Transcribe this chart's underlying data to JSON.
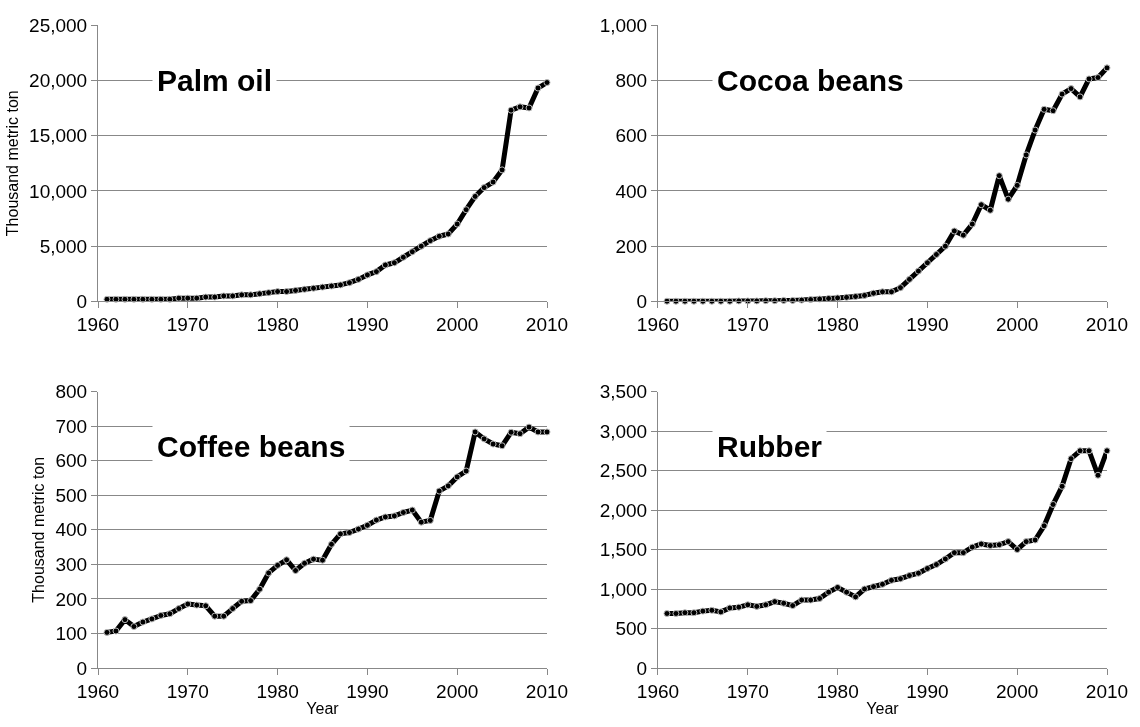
{
  "chart_data": [
    {
      "type": "line",
      "title": "Palm oil",
      "ylabel": "Thousand metric ton",
      "grid": "y",
      "marker": "circle",
      "line_style": "solid",
      "x": [
        1961,
        1962,
        1963,
        1964,
        1965,
        1966,
        1967,
        1968,
        1969,
        1970,
        1971,
        1972,
        1973,
        1974,
        1975,
        1976,
        1977,
        1978,
        1979,
        1980,
        1981,
        1982,
        1983,
        1984,
        1985,
        1986,
        1987,
        1988,
        1989,
        1990,
        1991,
        1992,
        1993,
        1994,
        1995,
        1996,
        1997,
        1998,
        1999,
        2000,
        2001,
        2002,
        2003,
        2004,
        2005,
        2006,
        2007,
        2008,
        2009,
        2010
      ],
      "xlim": [
        1960,
        2010
      ],
      "xticks": [
        1960,
        1970,
        1980,
        1990,
        2000,
        2010
      ],
      "ylim": [
        0,
        25000
      ],
      "yticks": [
        0,
        {
          "value": 5000,
          "label": "5,000"
        },
        {
          "value": 10000,
          "label": "10,000"
        },
        {
          "value": 15000,
          "label": "15,000"
        },
        {
          "value": 20000,
          "label": "20,000"
        },
        {
          "value": 25000,
          "label": "25,000"
        }
      ],
      "series": [
        {
          "color": "#000000",
          "values": [
            200,
            200,
            200,
            200,
            200,
            200,
            200,
            200,
            300,
            300,
            300,
            400,
            400,
            500,
            500,
            600,
            600,
            700,
            800,
            900,
            900,
            1000,
            1100,
            1200,
            1300,
            1400,
            1500,
            1700,
            2000,
            2400,
            2700,
            3300,
            3500,
            4000,
            4500,
            5000,
            5500,
            5900,
            6100,
            7000,
            8300,
            9500,
            10300,
            10800,
            11900,
            17300,
            17600,
            17500,
            19300,
            19800
          ]
        }
      ]
    },
    {
      "type": "line",
      "title": "Cocoa beans",
      "grid": "y",
      "marker": "circle",
      "line_style": "solid",
      "x": [
        1961,
        1962,
        1963,
        1964,
        1965,
        1966,
        1967,
        1968,
        1969,
        1970,
        1971,
        1972,
        1973,
        1974,
        1975,
        1976,
        1977,
        1978,
        1979,
        1980,
        1981,
        1982,
        1983,
        1984,
        1985,
        1986,
        1987,
        1988,
        1989,
        1990,
        1991,
        1992,
        1993,
        1994,
        1995,
        1996,
        1997,
        1998,
        1999,
        2000,
        2001,
        2002,
        2003,
        2004,
        2005,
        2006,
        2007,
        2008,
        2009,
        2010
      ],
      "xlim": [
        1960,
        2010
      ],
      "xticks": [
        1960,
        1970,
        1980,
        1990,
        2000,
        2010
      ],
      "ylim": [
        0,
        1000
      ],
      "yticks": [
        0,
        200,
        400,
        600,
        800,
        {
          "value": 1000,
          "label": "1,000"
        }
      ],
      "series": [
        {
          "color": "#000000",
          "values": [
            1,
            1,
            1,
            1,
            1,
            1,
            1,
            1,
            2,
            2,
            2,
            3,
            3,
            4,
            4,
            5,
            7,
            9,
            11,
            13,
            15,
            18,
            22,
            30,
            35,
            35,
            50,
            80,
            110,
            140,
            170,
            200,
            255,
            240,
            280,
            350,
            330,
            455,
            370,
            420,
            530,
            620,
            695,
            690,
            750,
            770,
            740,
            805,
            810,
            845
          ]
        }
      ]
    },
    {
      "type": "line",
      "title": "Coffee beans",
      "ylabel": "Thousand metric ton",
      "xlabel": "Year",
      "grid": "y",
      "marker": "circle",
      "line_style": "solid",
      "x": [
        1961,
        1962,
        1963,
        1964,
        1965,
        1966,
        1967,
        1968,
        1969,
        1970,
        1971,
        1972,
        1973,
        1974,
        1975,
        1976,
        1977,
        1978,
        1979,
        1980,
        1981,
        1982,
        1983,
        1984,
        1985,
        1986,
        1987,
        1988,
        1989,
        1990,
        1991,
        1992,
        1993,
        1994,
        1995,
        1996,
        1997,
        1998,
        1999,
        2000,
        2001,
        2002,
        2003,
        2004,
        2005,
        2006,
        2007,
        2008,
        2009,
        2010
      ],
      "xlim": [
        1960,
        2010
      ],
      "xticks": [
        1960,
        1970,
        1980,
        1990,
        2000,
        2010
      ],
      "ylim": [
        0,
        800
      ],
      "yticks": [
        0,
        100,
        200,
        300,
        400,
        500,
        600,
        700,
        800
      ],
      "series": [
        {
          "color": "#000000",
          "values": [
            103,
            107,
            140,
            120,
            133,
            142,
            152,
            157,
            172,
            185,
            182,
            180,
            150,
            150,
            172,
            193,
            195,
            228,
            275,
            297,
            313,
            282,
            303,
            315,
            312,
            358,
            388,
            392,
            402,
            413,
            428,
            437,
            440,
            450,
            457,
            422,
            427,
            512,
            527,
            553,
            570,
            683,
            663,
            648,
            643,
            682,
            678,
            697,
            683,
            683
          ]
        }
      ]
    },
    {
      "type": "line",
      "title": "Rubber",
      "xlabel": "Year",
      "grid": "y",
      "marker": "circle",
      "line_style": "solid",
      "x": [
        1961,
        1962,
        1963,
        1964,
        1965,
        1966,
        1967,
        1968,
        1969,
        1970,
        1971,
        1972,
        1973,
        1974,
        1975,
        1976,
        1977,
        1978,
        1979,
        1980,
        1981,
        1982,
        1983,
        1984,
        1985,
        1986,
        1987,
        1988,
        1989,
        1990,
        1991,
        1992,
        1993,
        1994,
        1995,
        1996,
        1997,
        1998,
        1999,
        2000,
        2001,
        2002,
        2003,
        2004,
        2005,
        2006,
        2007,
        2008,
        2009,
        2010
      ],
      "xlim": [
        1960,
        2010
      ],
      "xticks": [
        1960,
        1970,
        1980,
        1990,
        2000,
        2010
      ],
      "ylim": [
        0,
        3500
      ],
      "yticks": [
        0,
        500,
        {
          "value": 1000,
          "label": "1,000"
        },
        {
          "value": 1500,
          "label": "1,500"
        },
        {
          "value": 2000,
          "label": "2,000"
        },
        {
          "value": 2500,
          "label": "2,500"
        },
        {
          "value": 3000,
          "label": "3,000"
        },
        {
          "value": 3500,
          "label": "3,500"
        }
      ],
      "series": [
        {
          "color": "#000000",
          "values": [
            690,
            690,
            700,
            700,
            720,
            730,
            710,
            760,
            770,
            800,
            780,
            800,
            840,
            820,
            790,
            860,
            860,
            880,
            960,
            1020,
            960,
            900,
            1000,
            1030,
            1060,
            1110,
            1130,
            1170,
            1200,
            1260,
            1310,
            1380,
            1460,
            1460,
            1530,
            1570,
            1550,
            1560,
            1600,
            1500,
            1600,
            1620,
            1800,
            2070,
            2300,
            2650,
            2750,
            2750,
            2440,
            2750
          ]
        }
      ]
    }
  ]
}
